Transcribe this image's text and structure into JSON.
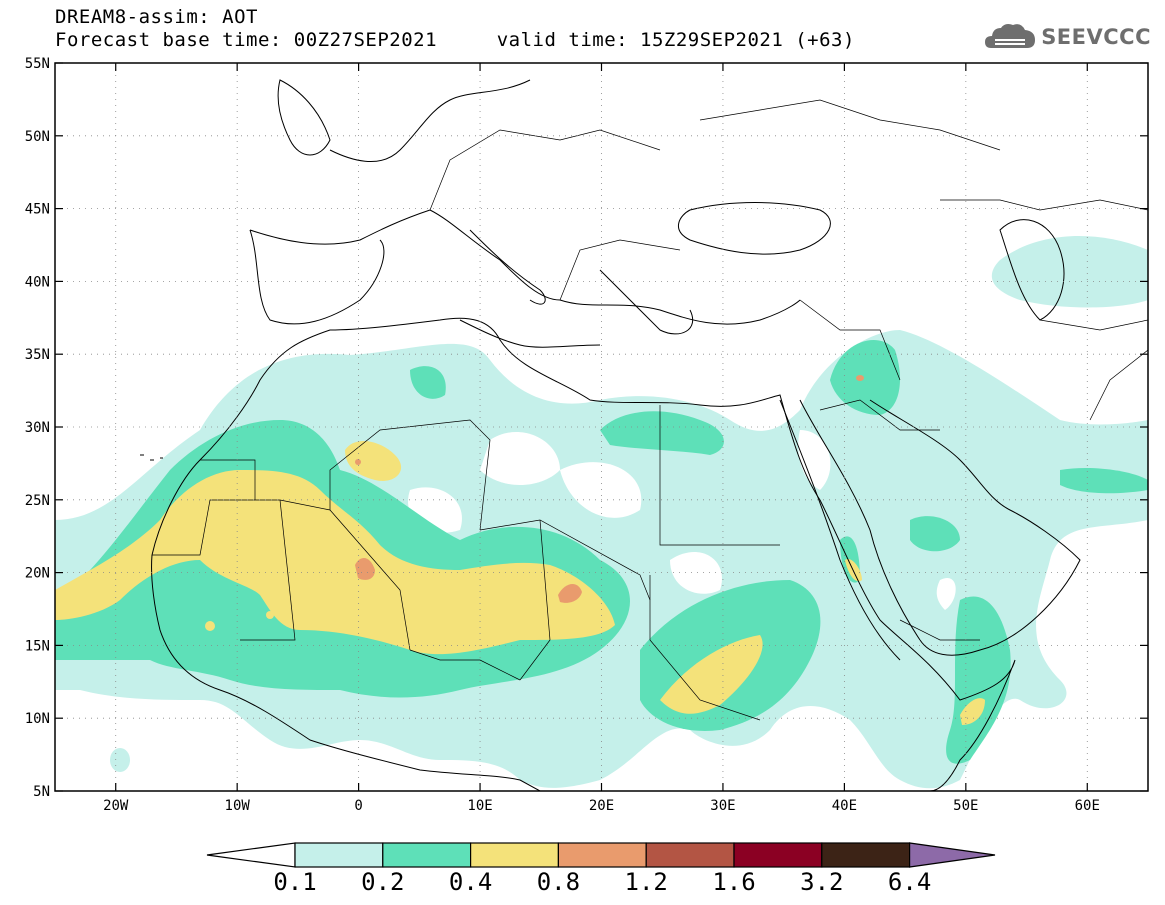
{
  "header": {
    "line1": "DREAM8-assim: AOT",
    "line2": "Forecast base time: 00Z27SEP2021     valid time: 15Z29SEP2021 (+63)",
    "brand": "SEEVCCC",
    "brand_icon": "cloud-logo-icon"
  },
  "map": {
    "lat_labels": [
      "55N",
      "50N",
      "45N",
      "40N",
      "35N",
      "30N",
      "25N",
      "20N",
      "15N",
      "10N",
      "5N"
    ],
    "lon_labels": [
      "20W",
      "10W",
      "0",
      "10E",
      "20E",
      "30E",
      "40E",
      "50E",
      "60E"
    ],
    "lon_range": [
      -25,
      65
    ],
    "lat_range": [
      5,
      55
    ]
  },
  "colorbar": {
    "labels": [
      "0.1",
      "0.2",
      "0.4",
      "0.8",
      "1.2",
      "1.6",
      "3.2",
      "6.4"
    ],
    "colors": [
      "#c5f0ea",
      "#5ee0b8",
      "#f4e27a",
      "#e99b6d",
      "#b35544",
      "#8b0023",
      "#3c2316",
      "#8d6aa8"
    ]
  }
}
